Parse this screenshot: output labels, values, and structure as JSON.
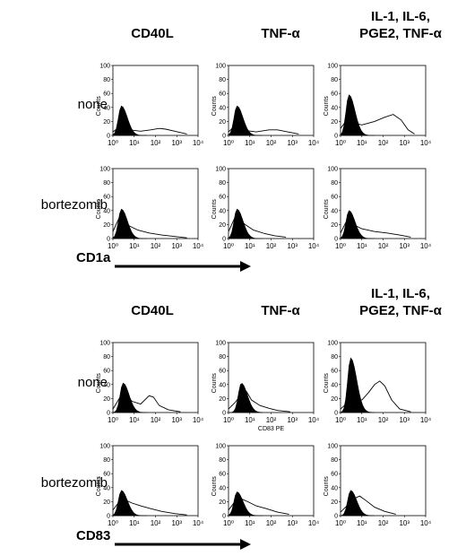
{
  "sections": [
    {
      "marker": "CD1a",
      "columns": [
        {
          "lines": [
            "CD40L"
          ]
        },
        {
          "lines": [
            "TNF-α"
          ]
        },
        {
          "lines": [
            "IL-1, IL-6,",
            "PGE2, TNF-α"
          ]
        }
      ],
      "rows": [
        "none",
        "bortezomib"
      ]
    },
    {
      "marker": "CD83",
      "columns": [
        {
          "lines": [
            "CD40L"
          ]
        },
        {
          "lines": [
            "TNF-α"
          ]
        },
        {
          "lines": [
            "IL-1, IL-6,",
            "PGE2, TNF-α"
          ]
        }
      ],
      "rows": [
        "none",
        "bortezomib"
      ]
    }
  ],
  "axis": {
    "ylabel": "Counts",
    "yticks": [
      "0",
      "20",
      "40",
      "60",
      "80",
      "100"
    ],
    "xticks": [
      "10⁰",
      "10¹",
      "10²",
      "10³",
      "10⁴"
    ]
  },
  "panel_xlabel": "CD83 PE",
  "chart_data": [
    {
      "type": "area",
      "section": "CD1a",
      "row": "none",
      "x_scale": "log",
      "xlim": [
        1,
        10000
      ],
      "ylim": [
        0,
        100
      ],
      "panels": [
        {
          "condition": "CD40L",
          "isotype_peak": {
            "x": 2.5,
            "y": 42
          },
          "stain": [
            [
              1,
              5
            ],
            [
              2,
              12
            ],
            [
              3,
              14
            ],
            [
              6,
              8
            ],
            [
              20,
              6
            ],
            [
              60,
              8
            ],
            [
              150,
              10
            ],
            [
              300,
              9
            ],
            [
              800,
              6
            ],
            [
              3000,
              2
            ]
          ]
        },
        {
          "condition": "TNF-α",
          "isotype_peak": {
            "x": 2.5,
            "y": 42
          },
          "stain": [
            [
              1,
              5
            ],
            [
              2,
              14
            ],
            [
              3,
              12
            ],
            [
              6,
              7
            ],
            [
              20,
              5
            ],
            [
              80,
              8
            ],
            [
              200,
              8
            ],
            [
              600,
              5
            ],
            [
              2000,
              2
            ]
          ]
        },
        {
          "condition": "IL-1, IL-6, PGE2, TNF-α",
          "isotype_peak": {
            "x": 2.5,
            "y": 58
          },
          "stain": [
            [
              1,
              10
            ],
            [
              2,
              22
            ],
            [
              4,
              18
            ],
            [
              10,
              15
            ],
            [
              40,
              20
            ],
            [
              120,
              26
            ],
            [
              300,
              30
            ],
            [
              700,
              22
            ],
            [
              1500,
              8
            ],
            [
              3000,
              2
            ]
          ]
        }
      ]
    },
    {
      "type": "area",
      "section": "CD1a",
      "row": "bortezomib",
      "x_scale": "log",
      "xlim": [
        1,
        10000
      ],
      "ylim": [
        0,
        100
      ],
      "panels": [
        {
          "condition": "CD40L",
          "isotype_peak": {
            "x": 2.5,
            "y": 42
          },
          "stain": [
            [
              1,
              10
            ],
            [
              2,
              30
            ],
            [
              3,
              24
            ],
            [
              6,
              18
            ],
            [
              15,
              12
            ],
            [
              50,
              8
            ],
            [
              200,
              5
            ],
            [
              800,
              3
            ],
            [
              3000,
              1
            ]
          ]
        },
        {
          "condition": "TNF-α",
          "isotype_peak": {
            "x": 2.5,
            "y": 42
          },
          "stain": [
            [
              1,
              10
            ],
            [
              2,
              30
            ],
            [
              3,
              28
            ],
            [
              6,
              20
            ],
            [
              15,
              12
            ],
            [
              50,
              7
            ],
            [
              150,
              4
            ],
            [
              500,
              2
            ]
          ]
        },
        {
          "condition": "IL-1, IL-6, PGE2, TNF-α",
          "isotype_peak": {
            "x": 2.5,
            "y": 40
          },
          "stain": [
            [
              1,
              8
            ],
            [
              2,
              26
            ],
            [
              4,
              20
            ],
            [
              10,
              14
            ],
            [
              40,
              10
            ],
            [
              150,
              8
            ],
            [
              600,
              5
            ],
            [
              2000,
              2
            ]
          ]
        }
      ]
    },
    {
      "type": "area",
      "section": "CD83",
      "row": "none",
      "x_scale": "log",
      "xlim": [
        1,
        10000
      ],
      "ylim": [
        0,
        100
      ],
      "panels": [
        {
          "condition": "CD40L",
          "isotype_peak": {
            "x": 3,
            "y": 42
          },
          "stain": [
            [
              1,
              5
            ],
            [
              2,
              20
            ],
            [
              4,
              24
            ],
            [
              8,
              16
            ],
            [
              20,
              12
            ],
            [
              50,
              24
            ],
            [
              80,
              22
            ],
            [
              150,
              10
            ],
            [
              400,
              4
            ],
            [
              1500,
              1
            ]
          ]
        },
        {
          "condition": "TNF-α",
          "isotype_peak": {
            "x": 4,
            "y": 42
          },
          "stain": [
            [
              1,
              5
            ],
            [
              2,
              14
            ],
            [
              4,
              26
            ],
            [
              7,
              30
            ],
            [
              12,
              18
            ],
            [
              30,
              10
            ],
            [
              80,
              6
            ],
            [
              200,
              3
            ],
            [
              800,
              1
            ]
          ]
        },
        {
          "condition": "IL-1, IL-6, PGE2, TNF-α",
          "isotype_peak": {
            "x": 3,
            "y": 78
          },
          "stain": [
            [
              1,
              5
            ],
            [
              3,
              18
            ],
            [
              10,
              18
            ],
            [
              20,
              28
            ],
            [
              40,
              40
            ],
            [
              70,
              45
            ],
            [
              120,
              38
            ],
            [
              250,
              18
            ],
            [
              600,
              5
            ],
            [
              2000,
              1
            ]
          ]
        }
      ]
    },
    {
      "type": "area",
      "section": "CD83",
      "row": "bortezomib",
      "x_scale": "log",
      "xlim": [
        1,
        10000
      ],
      "ylim": [
        0,
        100
      ],
      "panels": [
        {
          "condition": "CD40L",
          "isotype_peak": {
            "x": 2.5,
            "y": 36
          },
          "stain": [
            [
              1,
              8
            ],
            [
              2,
              20
            ],
            [
              4,
              22
            ],
            [
              8,
              18
            ],
            [
              20,
              14
            ],
            [
              60,
              10
            ],
            [
              200,
              6
            ],
            [
              800,
              3
            ],
            [
              3000,
              1
            ]
          ]
        },
        {
          "condition": "TNF-α",
          "isotype_peak": {
            "x": 2.5,
            "y": 34
          },
          "stain": [
            [
              1,
              8
            ],
            [
              2,
              20
            ],
            [
              4,
              24
            ],
            [
              8,
              20
            ],
            [
              20,
              14
            ],
            [
              60,
              10
            ],
            [
              200,
              5
            ],
            [
              700,
              2
            ]
          ]
        },
        {
          "condition": "IL-1, IL-6, PGE2, TNF-α",
          "isotype_peak": {
            "x": 3,
            "y": 36
          },
          "stain": [
            [
              1,
              5
            ],
            [
              2,
              14
            ],
            [
              4,
              24
            ],
            [
              8,
              28
            ],
            [
              15,
              22
            ],
            [
              40,
              12
            ],
            [
              120,
              6
            ],
            [
              400,
              2
            ]
          ]
        }
      ]
    }
  ]
}
